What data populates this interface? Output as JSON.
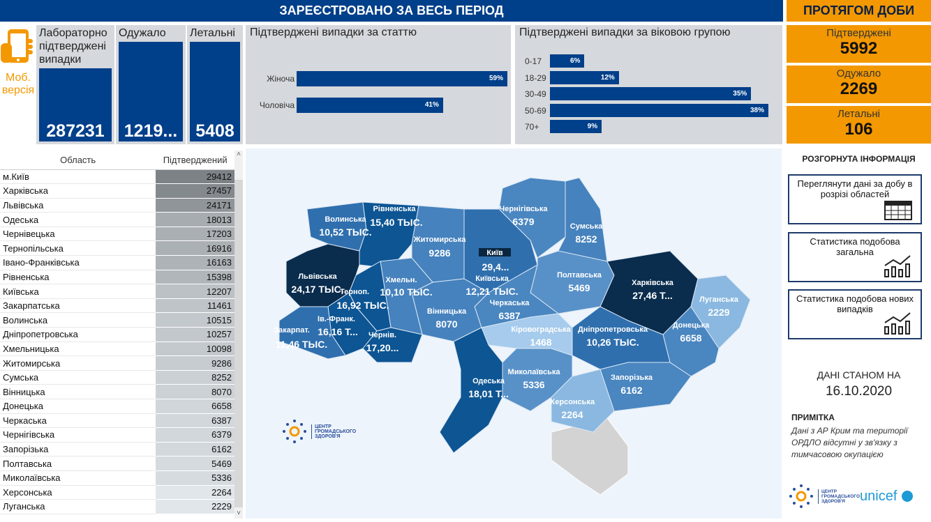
{
  "header": {
    "title": "ЗАРЕЄСТРОВАНО ЗА ВЕСЬ ПЕРІОД",
    "daily_title": "ПРОТЯГОМ ДОБИ"
  },
  "mobile": {
    "label1": "Моб.",
    "label2": "версія",
    "icon": "mobile-phone-icon"
  },
  "kpis": [
    {
      "label": "Лабораторно підтверджені випадки",
      "value": "287231"
    },
    {
      "label": "Одужало",
      "value": "1219..."
    },
    {
      "label": "Летальні",
      "value": "5408"
    }
  ],
  "sex_chart": {
    "title": "Підтверджені випадки за статтю",
    "categories": [
      "Жіноча",
      "Чоловіча"
    ],
    "values": [
      59,
      41
    ],
    "labels": [
      "59%",
      "41%"
    ]
  },
  "age_chart": {
    "title": "Підтверджені випадки за віковою групою",
    "categories": [
      "0-17",
      "18-29",
      "30-49",
      "50-69",
      "70+"
    ],
    "values": [
      6,
      12,
      35,
      38,
      9
    ],
    "labels": [
      "6%",
      "12%",
      "35%",
      "38%",
      "9%"
    ]
  },
  "daily": [
    {
      "label": "Підтверджені",
      "value": "5992"
    },
    {
      "label": "Одужало",
      "value": "2269"
    },
    {
      "label": "Летальні",
      "value": "106"
    }
  ],
  "table": {
    "headers": [
      "Область",
      "Підтверджений"
    ],
    "rows": [
      [
        "м.Київ",
        "29412"
      ],
      [
        "Харківська",
        "27457"
      ],
      [
        "Львівська",
        "24171"
      ],
      [
        "Одеська",
        "18013"
      ],
      [
        "Чернівецька",
        "17203"
      ],
      [
        "Тернопільська",
        "16916"
      ],
      [
        "Івано-Франківська",
        "16163"
      ],
      [
        "Рівненська",
        "15398"
      ],
      [
        "Київська",
        "12207"
      ],
      [
        "Закарпатська",
        "11461"
      ],
      [
        "Волинська",
        "10515"
      ],
      [
        "Дніпропетровська",
        "10257"
      ],
      [
        "Хмельницька",
        "10098"
      ],
      [
        "Житомирська",
        "9286"
      ],
      [
        "Сумська",
        "8252"
      ],
      [
        "Вінницька",
        "8070"
      ],
      [
        "Донецька",
        "6658"
      ],
      [
        "Черкаська",
        "6387"
      ],
      [
        "Чернігівська",
        "6379"
      ],
      [
        "Запорізька",
        "6162"
      ],
      [
        "Полтавська",
        "5469"
      ],
      [
        "Миколаївська",
        "5336"
      ],
      [
        "Херсонська",
        "2264"
      ],
      [
        "Луганська",
        "2229"
      ]
    ]
  },
  "map": {
    "regions": [
      {
        "name": "Волинська",
        "value": "10,52 ТЫС.",
        "color": "#2f6fae"
      },
      {
        "name": "Рівненська",
        "value": "15,40 ТЫС.",
        "color": "#0d5593"
      },
      {
        "name": "Житомирська",
        "value": "9286",
        "color": "#4682bd"
      },
      {
        "name": "Київська",
        "value": "12,21 ТЫС.",
        "color": "#2f6fae"
      },
      {
        "name": "Чернігівська",
        "value": "6379",
        "color": "#4a86c0"
      },
      {
        "name": "Сумська",
        "value": "8252",
        "color": "#4682bd"
      },
      {
        "name": "Полтавська",
        "value": "5469",
        "color": "#5891c8"
      },
      {
        "name": "Харківська",
        "value": "27,46 Т...",
        "color": "#0a2c4d"
      },
      {
        "name": "Луганська",
        "value": "2229",
        "color": "#8ab8e0"
      },
      {
        "name": "Донецька",
        "value": "6658",
        "color": "#4a86c0"
      },
      {
        "name": "Дніпропетровська",
        "value": "10,26 ТЫС.",
        "color": "#2f6fae"
      },
      {
        "name": "Запорізька",
        "value": "6162",
        "color": "#4a86c0"
      },
      {
        "name": "Херсонська",
        "value": "2264",
        "color": "#8ab8e0"
      },
      {
        "name": "Миколаївська",
        "value": "5336",
        "color": "#5891c8"
      },
      {
        "name": "Кіровоградська",
        "value": "1468",
        "color": "#a6cbec"
      },
      {
        "name": "Черкаська",
        "value": "6387",
        "color": "#4a86c0"
      },
      {
        "name": "Вінницька",
        "value": "8070",
        "color": "#4682bd"
      },
      {
        "name": "Хмельн.",
        "value": "10,10 ТЫС.",
        "color": "#4682bd"
      },
      {
        "name": "Терноп.",
        "value": "16,92 ТЫС.",
        "color": "#0d5593"
      },
      {
        "name": "Львівська",
        "value": "24,17 ТЫС.",
        "color": "#0a2c4d"
      },
      {
        "name": "Ів.-Франк.",
        "value": "16,16 Т...",
        "color": "#0d5593"
      },
      {
        "name": "Закарпат.",
        "value": "11,46 ТЫС.",
        "color": "#2f6fae"
      },
      {
        "name": "Чернів.",
        "value": "17,20...",
        "color": "#0d5593"
      },
      {
        "name": "Одеська",
        "value": "18,01 Т...",
        "color": "#0d5593"
      }
    ],
    "kyiv": {
      "name": "Київ",
      "value": "29,4..."
    },
    "no_data_color": "#d3d3d3"
  },
  "logo": {
    "text": "ЦЕНТР ГРОМАДСЬКОГО ЗДОРОВ'Я",
    "unicef": "unicef"
  },
  "side": {
    "title": "РОЗГОРНУТА ІНФОРМАЦІЯ",
    "buttons": [
      {
        "label": "Переглянути дані за добу в розрізі областей",
        "icon": "table-icon"
      },
      {
        "label": "Статистика подобова загальна",
        "icon": "line-chart-icon"
      },
      {
        "label": "Статистика подобова нових випадків",
        "icon": "line-chart-icon"
      }
    ],
    "date_label": "ДАНІ СТАНОМ НА",
    "date": "16.10.2020",
    "note_title": "ПРИМІТКА",
    "note": "Дані з АР Крим та території ОРДЛО відсутні у зв'язку з тимчасовою окупацією"
  },
  "colors": {
    "primary": "#003f8a",
    "accent": "#f39800"
  }
}
